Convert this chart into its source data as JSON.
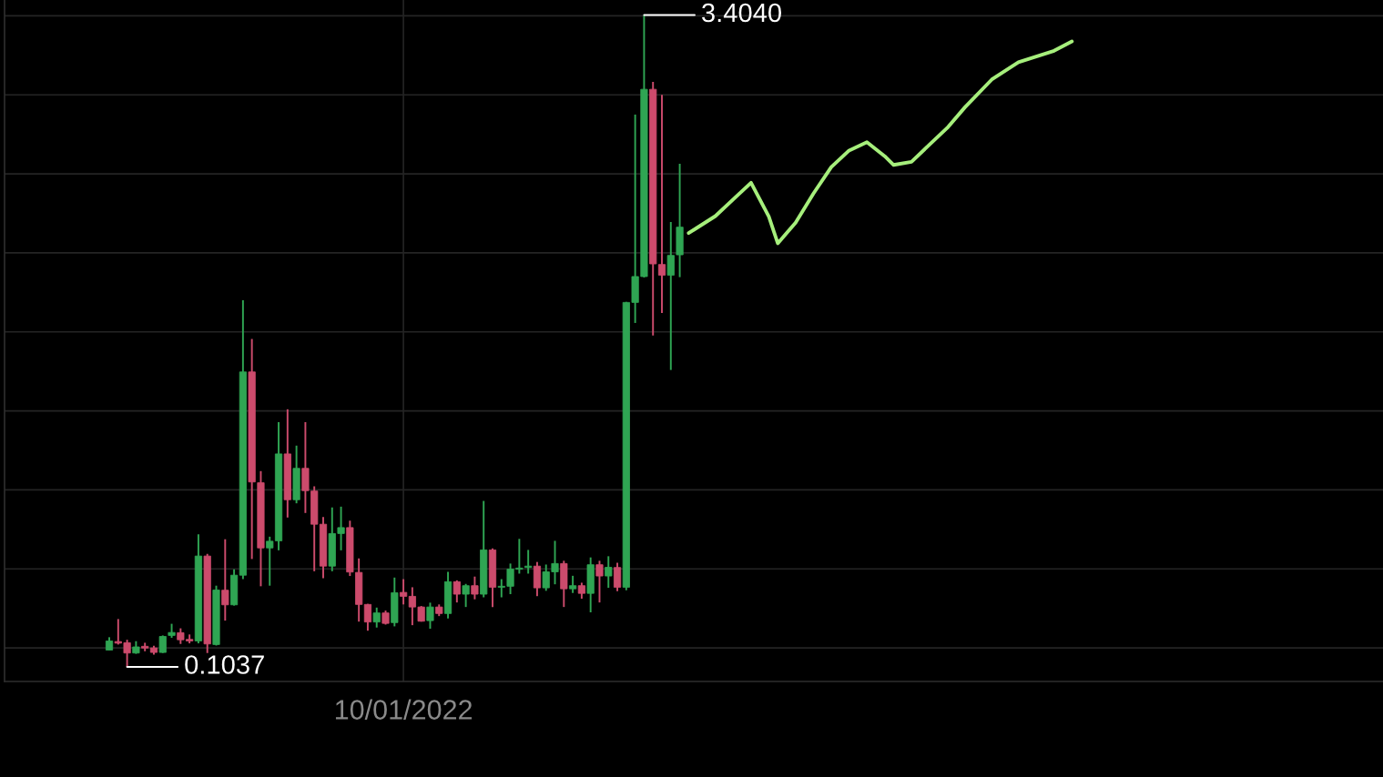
{
  "chart_data": {
    "type": "candlestick",
    "categories": [
      null,
      null,
      null,
      null,
      null,
      null,
      null,
      null,
      null,
      null,
      null,
      null,
      null,
      null,
      null,
      null,
      null,
      null,
      null,
      null,
      null,
      null,
      null,
      null,
      null,
      null,
      null,
      null,
      null,
      null,
      null,
      null,
      null,
      "10/01/2022",
      null,
      null,
      null,
      null,
      null,
      null,
      null,
      null,
      null,
      null,
      null,
      null,
      null,
      null,
      null,
      null,
      null,
      null,
      null,
      null,
      null,
      null,
      null,
      null,
      null,
      null,
      null,
      null,
      null,
      null,
      null,
      null,
      null,
      null,
      null,
      null,
      null,
      null,
      null,
      null,
      null,
      null,
      null,
      null,
      null,
      null,
      null,
      null,
      null,
      null,
      null,
      null,
      null,
      null,
      null,
      null,
      null,
      null,
      null,
      null,
      null,
      null,
      null,
      null,
      null,
      null,
      null,
      null,
      null,
      null,
      null,
      null,
      null,
      null,
      null
    ],
    "ohlc": [
      [
        0.189,
        0.254,
        0.189,
        0.235
      ],
      [
        0.232,
        0.346,
        0.217,
        0.224
      ],
      [
        0.226,
        0.241,
        0.1037,
        0.174
      ],
      [
        0.174,
        0.234,
        0.17,
        0.205
      ],
      [
        0.208,
        0.226,
        0.183,
        0.199
      ],
      [
        0.2,
        0.211,
        0.166,
        0.177
      ],
      [
        0.177,
        0.263,
        0.174,
        0.258
      ],
      [
        0.263,
        0.322,
        0.251,
        0.278
      ],
      [
        0.277,
        0.299,
        0.22,
        0.241
      ],
      [
        0.243,
        0.268,
        0.223,
        0.235
      ],
      [
        0.235,
        0.775,
        0.223,
        0.665
      ],
      [
        0.665,
        0.676,
        0.174,
        0.22
      ],
      [
        0.217,
        0.515,
        0.212,
        0.493
      ],
      [
        0.492,
        0.75,
        0.338,
        0.418
      ],
      [
        0.418,
        0.598,
        0.414,
        0.568
      ],
      [
        0.568,
        1.96,
        0.548,
        1.597
      ],
      [
        1.597,
        1.764,
        0.65,
        1.04
      ],
      [
        1.036,
        1.095,
        0.512,
        0.706
      ],
      [
        0.706,
        0.763,
        0.515,
        0.74
      ],
      [
        0.742,
        1.343,
        0.694,
        1.182
      ],
      [
        1.182,
        1.408,
        0.86,
        0.95
      ],
      [
        0.95,
        1.224,
        0.932,
        1.109
      ],
      [
        1.109,
        1.343,
        0.883,
        0.996
      ],
      [
        0.994,
        1.018,
        0.588,
        0.826
      ],
      [
        0.826,
        0.863,
        0.553,
        0.614
      ],
      [
        0.614,
        0.911,
        0.588,
        0.779
      ],
      [
        0.779,
        0.915,
        0.694,
        0.809
      ],
      [
        0.809,
        0.844,
        0.564,
        0.584
      ],
      [
        0.582,
        0.653,
        0.333,
        0.42
      ],
      [
        0.42,
        0.423,
        0.287,
        0.331
      ],
      [
        0.331,
        0.404,
        0.303,
        0.377
      ],
      [
        0.377,
        0.389,
        0.318,
        0.324
      ],
      [
        0.328,
        0.556,
        0.309,
        0.479
      ],
      [
        0.481,
        0.548,
        0.42,
        0.461
      ],
      [
        0.461,
        0.507,
        0.315,
        0.407
      ],
      [
        0.407,
        0.412,
        0.333,
        0.335
      ],
      [
        0.338,
        0.429,
        0.297,
        0.407
      ],
      [
        0.407,
        0.42,
        0.361,
        0.374
      ],
      [
        0.374,
        0.585,
        0.349,
        0.535
      ],
      [
        0.535,
        0.542,
        0.43,
        0.472
      ],
      [
        0.472,
        0.524,
        0.407,
        0.515
      ],
      [
        0.515,
        0.561,
        0.446,
        0.472
      ],
      [
        0.472,
        0.944,
        0.456,
        0.696
      ],
      [
        0.696,
        0.704,
        0.407,
        0.507
      ],
      [
        0.507,
        0.548,
        0.456,
        0.512
      ],
      [
        0.512,
        0.627,
        0.472,
        0.599
      ],
      [
        0.598,
        0.752,
        0.576,
        0.604
      ],
      [
        0.607,
        0.696,
        0.576,
        0.614
      ],
      [
        0.614,
        0.635,
        0.462,
        0.504
      ],
      [
        0.504,
        0.622,
        0.489,
        0.585
      ],
      [
        0.585,
        0.742,
        0.522,
        0.627
      ],
      [
        0.627,
        0.641,
        0.407,
        0.499
      ],
      [
        0.499,
        0.565,
        0.478,
        0.515
      ],
      [
        0.515,
        0.53,
        0.449,
        0.476
      ],
      [
        0.476,
        0.658,
        0.38,
        0.621
      ],
      [
        0.621,
        0.641,
        0.43,
        0.564
      ],
      [
        0.564,
        0.664,
        0.504,
        0.608
      ],
      [
        0.607,
        0.631,
        0.487,
        0.507
      ],
      [
        0.507,
        1.952,
        0.492,
        1.949
      ],
      [
        1.949,
        2.9,
        1.845,
        2.08
      ],
      [
        2.08,
        3.404,
        2.075,
        3.028
      ],
      [
        3.028,
        3.065,
        1.781,
        2.144
      ],
      [
        2.141,
        3.0,
        1.896,
        2.087
      ],
      [
        2.087,
        2.356,
        1.607,
        2.187
      ],
      [
        2.19,
        2.651,
        2.077,
        2.33
      ],
      null,
      null,
      null,
      null,
      null,
      null,
      null,
      null,
      null,
      null,
      null,
      null,
      null,
      null,
      null,
      null,
      null,
      null,
      null,
      null,
      null,
      null,
      null,
      null,
      null,
      null,
      null,
      null,
      null,
      null,
      null,
      null,
      null,
      null,
      null,
      null,
      null,
      null,
      null,
      null,
      null,
      null,
      null,
      null
    ],
    "colors": [
      "#2fa553",
      "#cc4b6c",
      "#cc4b6c",
      "#2fa553",
      "#cc4b6c",
      "#cc4b6c",
      "#2fa553",
      "#2fa553",
      "#cc4b6c",
      "#cc4b6c",
      "#2fa553",
      "#cc4b6c",
      "#2fa553",
      "#cc4b6c",
      "#2fa553",
      "#2fa553",
      "#cc4b6c",
      "#cc4b6c",
      "#2fa553",
      "#2fa553",
      "#cc4b6c",
      "#2fa553",
      "#cc4b6c",
      "#cc4b6c",
      "#cc4b6c",
      "#2fa553",
      "#2fa553",
      "#cc4b6c",
      "#cc4b6c",
      "#cc4b6c",
      "#2fa553",
      "#cc4b6c",
      "#2fa553",
      "#cc4b6c",
      "#cc4b6c",
      "#cc4b6c",
      "#2fa553",
      "#cc4b6c",
      "#2fa553",
      "#cc4b6c",
      "#2fa553",
      "#cc4b6c",
      "#2fa553",
      "#cc4b6c",
      "#2fa553",
      "#2fa553",
      "#2fa553",
      "#2fa553",
      "#cc4b6c",
      "#2fa553",
      "#2fa553",
      "#cc4b6c",
      "#2fa553",
      "#cc4b6c",
      "#2fa553",
      "#cc4b6c",
      "#2fa553",
      "#cc4b6c",
      "#2fa553",
      "#2fa553",
      "#2fa553",
      "#cc4b6c",
      "#cc4b6c",
      "#2fa553",
      "#2fa553",
      null,
      null,
      null,
      null,
      null,
      null,
      null,
      null,
      null,
      null,
      null,
      null,
      null,
      null,
      null,
      null,
      null,
      null,
      null,
      null,
      null,
      null,
      null,
      null,
      null,
      null,
      null,
      null,
      null,
      null,
      null,
      null,
      null,
      null,
      null,
      null,
      null,
      null,
      null,
      null,
      null,
      null,
      null,
      null
    ],
    "series": [
      {
        "type": "line",
        "color": "#a6ef7c",
        "values": [
          null,
          null,
          null,
          null,
          null,
          null,
          null,
          null,
          null,
          null,
          null,
          null,
          null,
          null,
          null,
          null,
          null,
          null,
          null,
          null,
          null,
          null,
          null,
          null,
          null,
          null,
          null,
          null,
          null,
          null,
          null,
          null,
          null,
          null,
          null,
          null,
          null,
          null,
          null,
          null,
          null,
          null,
          null,
          null,
          null,
          null,
          null,
          null,
          null,
          null,
          null,
          null,
          null,
          null,
          null,
          null,
          null,
          null,
          null,
          null,
          null,
          null,
          null,
          null,
          null,
          2.3,
          null,
          null,
          2.386,
          null,
          2.471,
          null,
          2.555,
          null,
          2.383,
          2.248,
          null,
          2.353,
          null,
          2.5,
          null,
          2.634,
          null,
          2.718,
          null,
          2.76,
          null,
          2.689,
          2.645,
          null,
          2.661,
          null,
          2.747,
          null,
          2.832,
          null,
          2.937,
          null,
          null,
          3.077,
          null,
          null,
          3.165,
          null,
          null,
          null,
          3.223,
          null,
          3.27
        ]
      }
    ],
    "ylim": [
      0.03,
      3.48
    ],
    "yticks": [
      {
        "value": 0.2,
        "label": null
      },
      {
        "value": 0.6,
        "label": null
      },
      {
        "value": 1.0,
        "label": null
      },
      {
        "value": 1.4,
        "label": null
      },
      {
        "value": 1.8,
        "label": null
      },
      {
        "value": 2.2,
        "label": null
      },
      {
        "value": 2.6,
        "label": null
      },
      {
        "value": 3.0,
        "label": null
      },
      {
        "value": 3.4,
        "label": null
      }
    ],
    "tick_labels": "x",
    "grid": true,
    "annotations": [
      "3.4040",
      "0.1037"
    ]
  }
}
